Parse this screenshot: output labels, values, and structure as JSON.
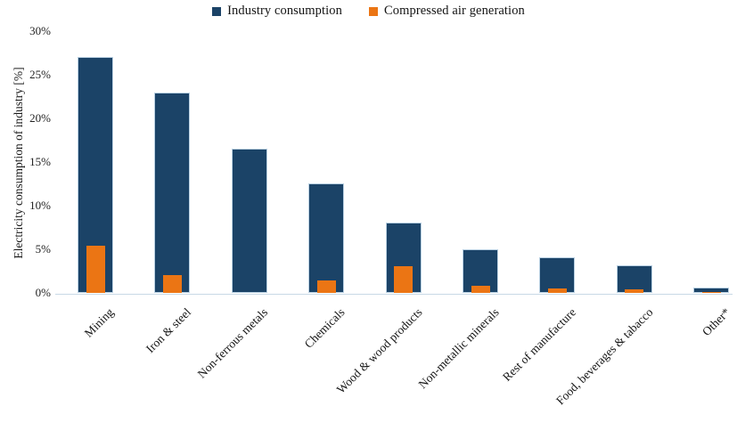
{
  "chart_data": {
    "type": "bar",
    "title": "",
    "xlabel": "",
    "ylabel": "Electricity consumption of industry [%]",
    "ylim": [
      0,
      30
    ],
    "ytick_labels": [
      "0%",
      "5%",
      "10%",
      "15%",
      "20%",
      "25%",
      "30%"
    ],
    "grid": false,
    "legend_position": "top-center",
    "bar_style": "overlay-narrow-front",
    "categories": [
      "Mining",
      "Iron & steel",
      "Non-ferrous metals",
      "Chemicals",
      "Wood & wood products",
      "Non-metallic minerals",
      "Rest of manufacture",
      "Food, beverages & tabacco",
      "Other*"
    ],
    "series": [
      {
        "name": "Industry consumption",
        "color": "#1B4367",
        "values": [
          27,
          23,
          16.5,
          12.5,
          8.1,
          5.0,
          4.1,
          3.2,
          0.6
        ]
      },
      {
        "name": "Compressed air generation",
        "color": "#EB7514",
        "values": [
          5.4,
          2.0,
          0,
          1.4,
          3.1,
          0.8,
          0.5,
          0.4,
          0.1
        ]
      }
    ]
  }
}
